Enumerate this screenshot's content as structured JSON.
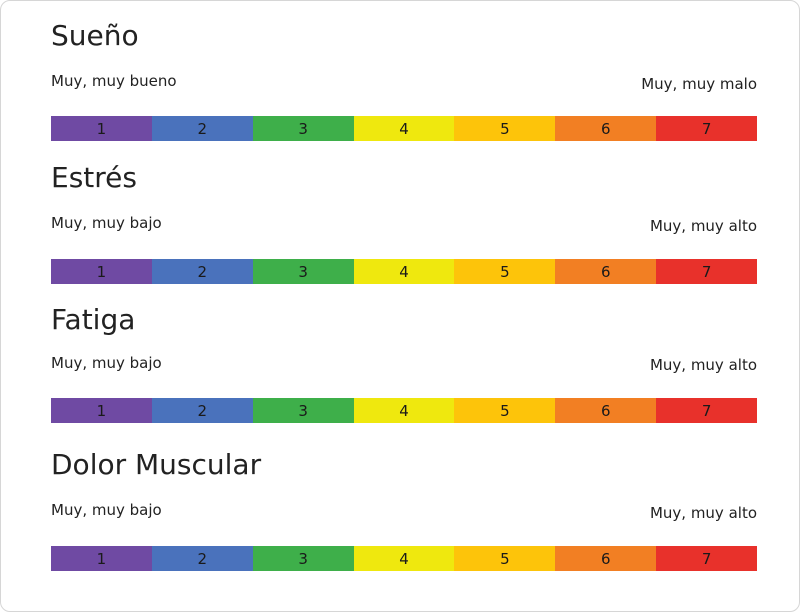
{
  "colors": {
    "scale": [
      "#6f4aa3",
      "#4a72bc",
      "#3eaf4a",
      "#efe80e",
      "#fdc40a",
      "#f27f23",
      "#e8312b"
    ]
  },
  "sections": [
    {
      "title": "Sueño",
      "left_label": "Muy, muy bueno",
      "right_label": "Muy, muy malo",
      "values": [
        "1",
        "2",
        "3",
        "4",
        "5",
        "6",
        "7"
      ]
    },
    {
      "title": "Estrés",
      "left_label": "Muy, muy bajo",
      "right_label": "Muy, muy alto",
      "values": [
        "1",
        "2",
        "3",
        "4",
        "5",
        "6",
        "7"
      ]
    },
    {
      "title": "Fatiga",
      "left_label": "Muy, muy bajo",
      "right_label": "Muy, muy alto",
      "values": [
        "1",
        "2",
        "3",
        "4",
        "5",
        "6",
        "7"
      ]
    },
    {
      "title": "Dolor Muscular",
      "left_label": "Muy, muy bajo",
      "right_label": "Muy, muy alto",
      "values": [
        "1",
        "2",
        "3",
        "4",
        "5",
        "6",
        "7"
      ]
    }
  ]
}
